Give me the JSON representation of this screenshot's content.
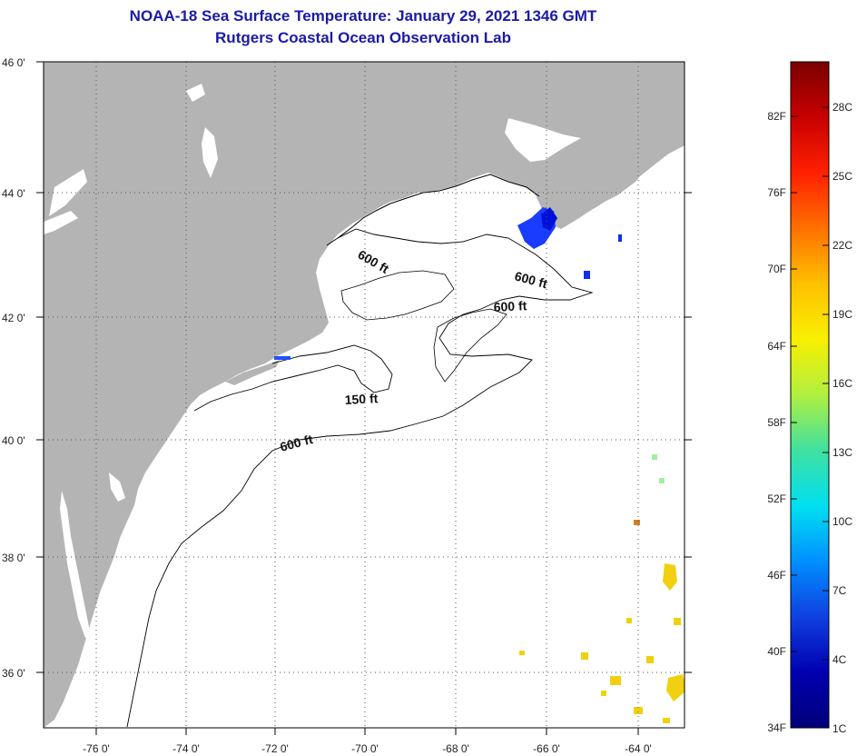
{
  "header": {
    "title": "NOAA-18 Sea Surface Temperature:  January 29, 2021 1346 GMT",
    "subtitle": "Rutgers Coastal Ocean Observation Lab"
  },
  "map": {
    "lat_labels": [
      "46 0'",
      "44 0'",
      "42 0'",
      "40 0'",
      "38 0'",
      "36 0'"
    ],
    "lon_labels": [
      "-76 0'",
      "-74 0'",
      "-72 0'",
      "-70 0'",
      "-68 0'",
      "-66 0'",
      "-64 0'"
    ],
    "contours": [
      {
        "label": "600 ft",
        "name": "contour-label-600-north"
      },
      {
        "label": "600 ft",
        "name": "contour-label-600-east"
      },
      {
        "label": "600 ft",
        "name": "contour-label-600-georges"
      },
      {
        "label": "150 ft",
        "name": "contour-label-150"
      },
      {
        "label": "600 ft",
        "name": "contour-label-600-south"
      }
    ],
    "colors": {
      "land": "#b4b4b4",
      "water": "#ffffff",
      "grid": "#555555"
    }
  },
  "colorbar": {
    "fahrenheit": [
      "82F",
      "76F",
      "70F",
      "64F",
      "58F",
      "52F",
      "46F",
      "40F",
      "34F"
    ],
    "celsius": [
      "28C",
      "25C",
      "22C",
      "19C",
      "16C",
      "13C",
      "10C",
      "7C",
      "4C",
      "1C"
    ],
    "gradient": [
      "#7a0000",
      "#c80000",
      "#ff2000",
      "#ff7000",
      "#ffc000",
      "#f8f000",
      "#b0f040",
      "#40e0a0",
      "#00e0f0",
      "#0090ff",
      "#1040e0",
      "#0000b0",
      "#00007a"
    ]
  }
}
